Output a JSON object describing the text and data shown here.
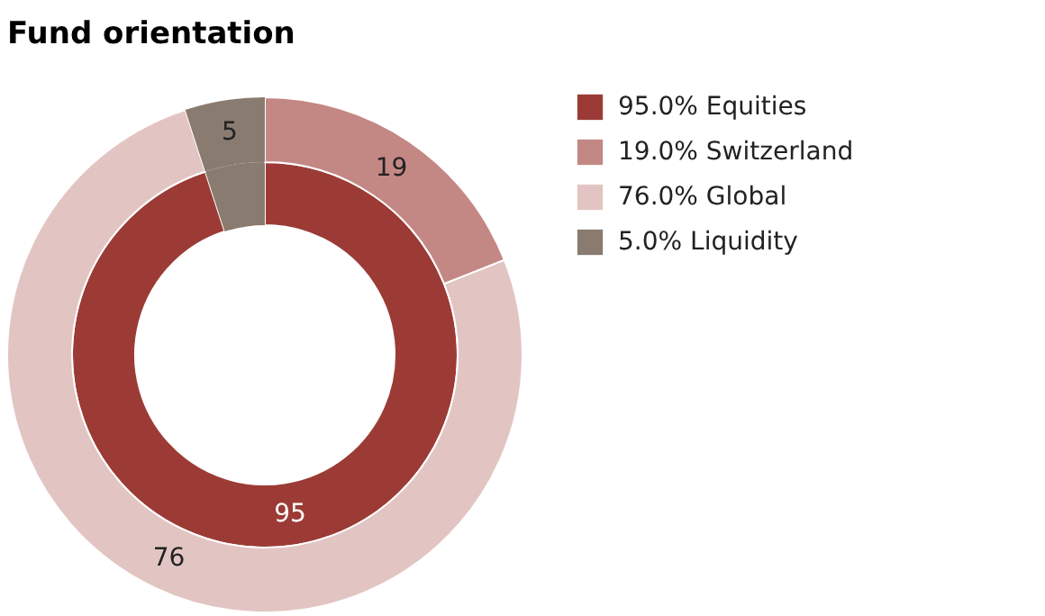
{
  "chart_data": {
    "type": "donut",
    "title": "Fund orientation",
    "categories": [
      "95.0% Equities",
      "19.0% Switzerland",
      "76.0% Global",
      "5.0% Liquidity"
    ],
    "colors": [
      "#9c3b36",
      "#c48884",
      "#e2c5c3",
      "#8a7b70"
    ],
    "series": [
      {
        "values": [
          95,
          null,
          null,
          5
        ],
        "value_labels": [
          "95",
          null,
          null,
          null
        ]
      },
      {
        "values": [
          null,
          19,
          76,
          5
        ],
        "value_labels": [
          null,
          "19",
          "76",
          "5"
        ]
      }
    ],
    "legend": "right"
  }
}
